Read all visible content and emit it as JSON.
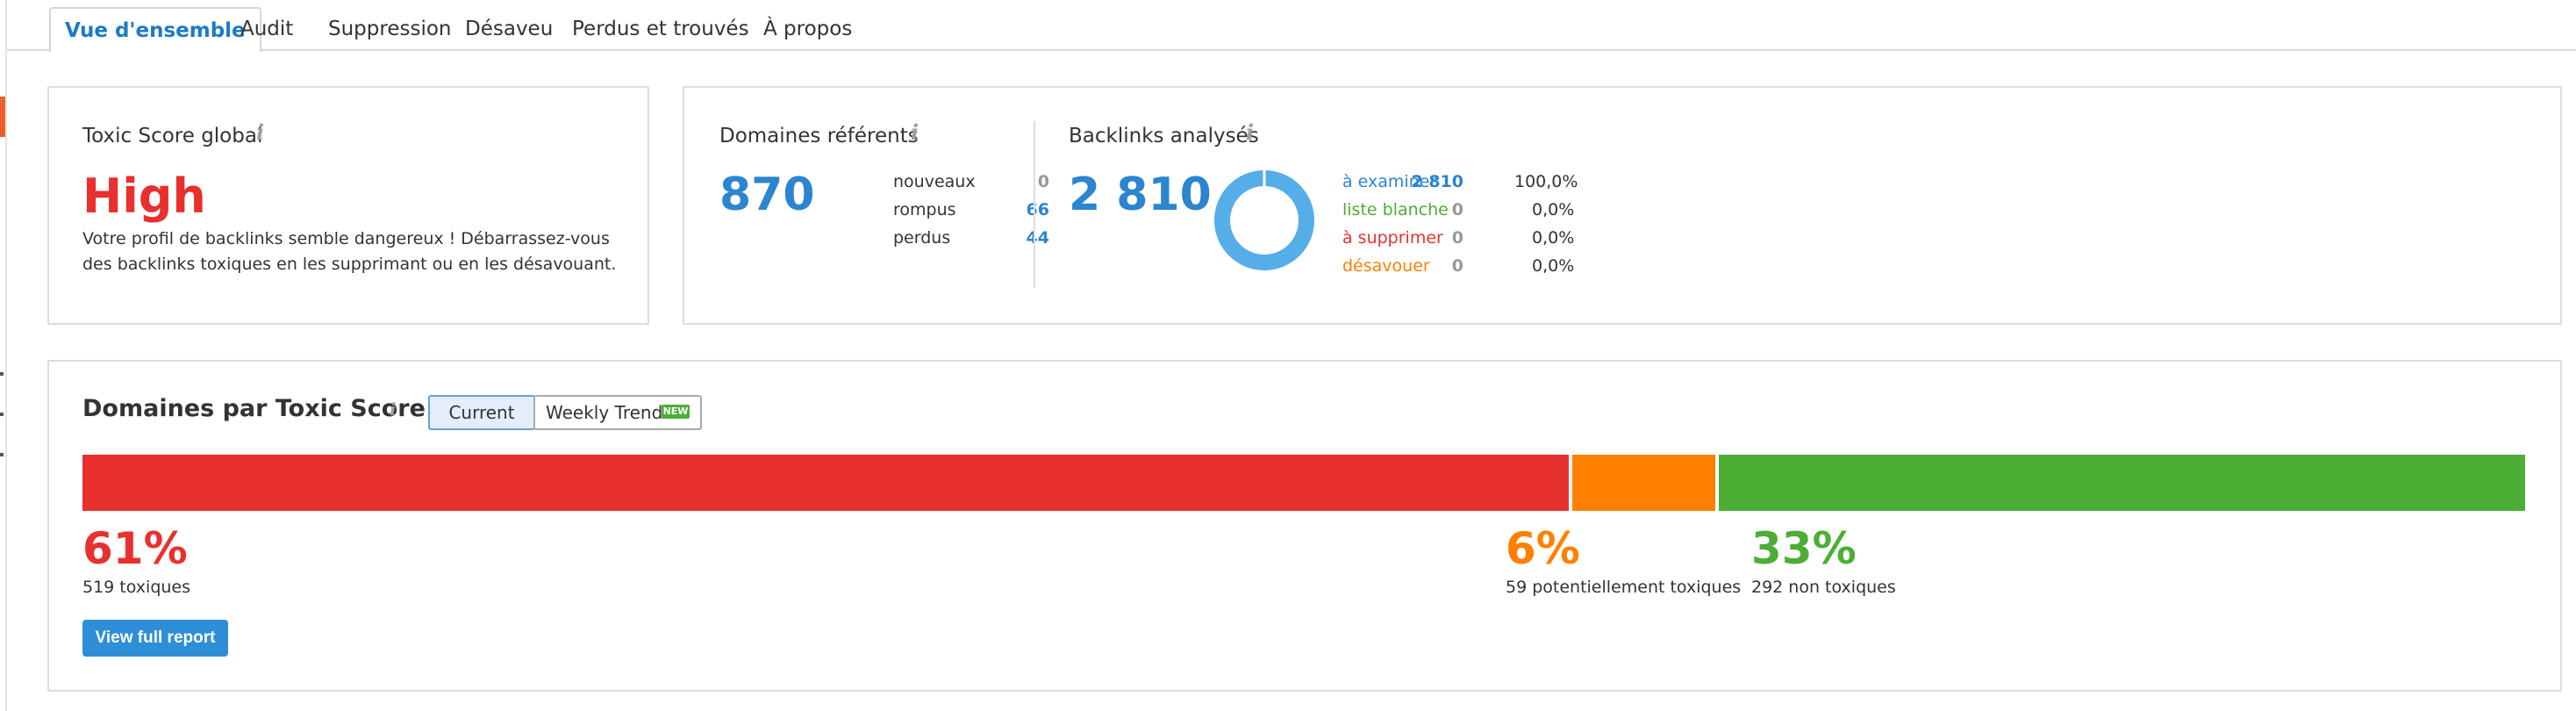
{
  "colors": {
    "accent": "#1c7bc5",
    "blue": "#2b85d0",
    "toxic": "#e8302f",
    "potential": "#ff8000",
    "safe": "#4cae35"
  },
  "tabs": [
    {
      "label": "Vue d'ensemble",
      "active": true
    },
    {
      "label": "Audit"
    },
    {
      "label": "Suppression"
    },
    {
      "label": "Désaveu"
    },
    {
      "label": "Perdus et trouvés"
    },
    {
      "label": "À propos"
    }
  ],
  "toxic_card": {
    "title": "Toxic Score global",
    "level": "High",
    "description": "Votre profil de backlinks semble dangereux ! Débarrassez-vous des backlinks toxiques en les supprimant ou en les désavouant."
  },
  "referring": {
    "title": "Domaines référents",
    "total": "870",
    "rows": [
      {
        "label": "nouveaux",
        "value": "0"
      },
      {
        "label": "rompus",
        "value": "66"
      },
      {
        "label": "perdus",
        "value": "44"
      }
    ]
  },
  "backlinks": {
    "title": "Backlinks analysés",
    "total": "2 810",
    "donut_icon": "donut-chart-icon",
    "statuses": [
      {
        "label": "à examiner",
        "count": "2 810",
        "percent": "100,0%",
        "share": 1.0
      },
      {
        "label": "liste blanche",
        "count": "0",
        "percent": "0,0%",
        "share": 0
      },
      {
        "label": "à supprimer",
        "count": "0",
        "percent": "0,0%",
        "share": 0
      },
      {
        "label": "désavouer",
        "count": "0",
        "percent": "0,0%",
        "share": 0
      }
    ]
  },
  "domains_card": {
    "title": "Domaines par Toxic Score",
    "toggle": {
      "current": "Current",
      "weekly": "Weekly Trend",
      "badge": "NEW"
    },
    "segments": [
      {
        "percent": "61%",
        "label": "519 toxiques",
        "share": 0.61
      },
      {
        "percent": "6%",
        "label": "59 potentiellement toxiques",
        "share": 0.06
      },
      {
        "percent": "33%",
        "label": "292 non toxiques",
        "share": 0.33
      }
    ],
    "report_button": "View full report"
  }
}
